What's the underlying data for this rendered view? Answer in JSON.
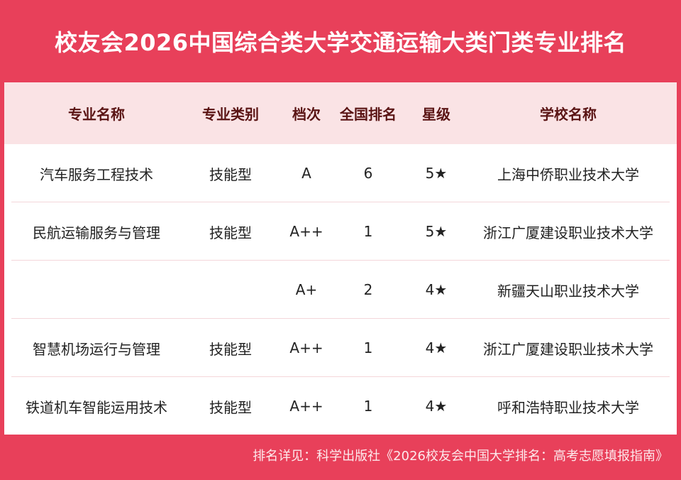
{
  "title": "校友会2026中国综合类大学交通运输大类门类专业排名",
  "columns": [
    "专业名称",
    "专业类别",
    "档次",
    "全国排名",
    "星级",
    "学校名称"
  ],
  "rows": [
    [
      "汽车服务工程技术",
      "技能型",
      "A",
      "6",
      "5★",
      "上海中侨职业技术大学"
    ],
    [
      "民航运输服务与管理",
      "技能型",
      "A++",
      "1",
      "5★",
      "浙江广厦建设职业技术大学"
    ],
    [
      "",
      "",
      "A+",
      "2",
      "4★",
      "新疆天山职业技术大学"
    ],
    [
      "智慧机场运行与管理",
      "技能型",
      "A++",
      "1",
      "4★",
      "浙江广厦建设职业技术大学"
    ],
    [
      "铁道机车智能运用技术",
      "技能型",
      "A++",
      "1",
      "4★",
      "呼和浩特职业技术大学"
    ]
  ],
  "footer": "排名详见：科学出版社《2026校友会中国大学排名：高考志愿填报指南》",
  "colors": {
    "background": "#e8405a",
    "header_bg": "#fae3e5",
    "header_text": "#5a1414"
  }
}
